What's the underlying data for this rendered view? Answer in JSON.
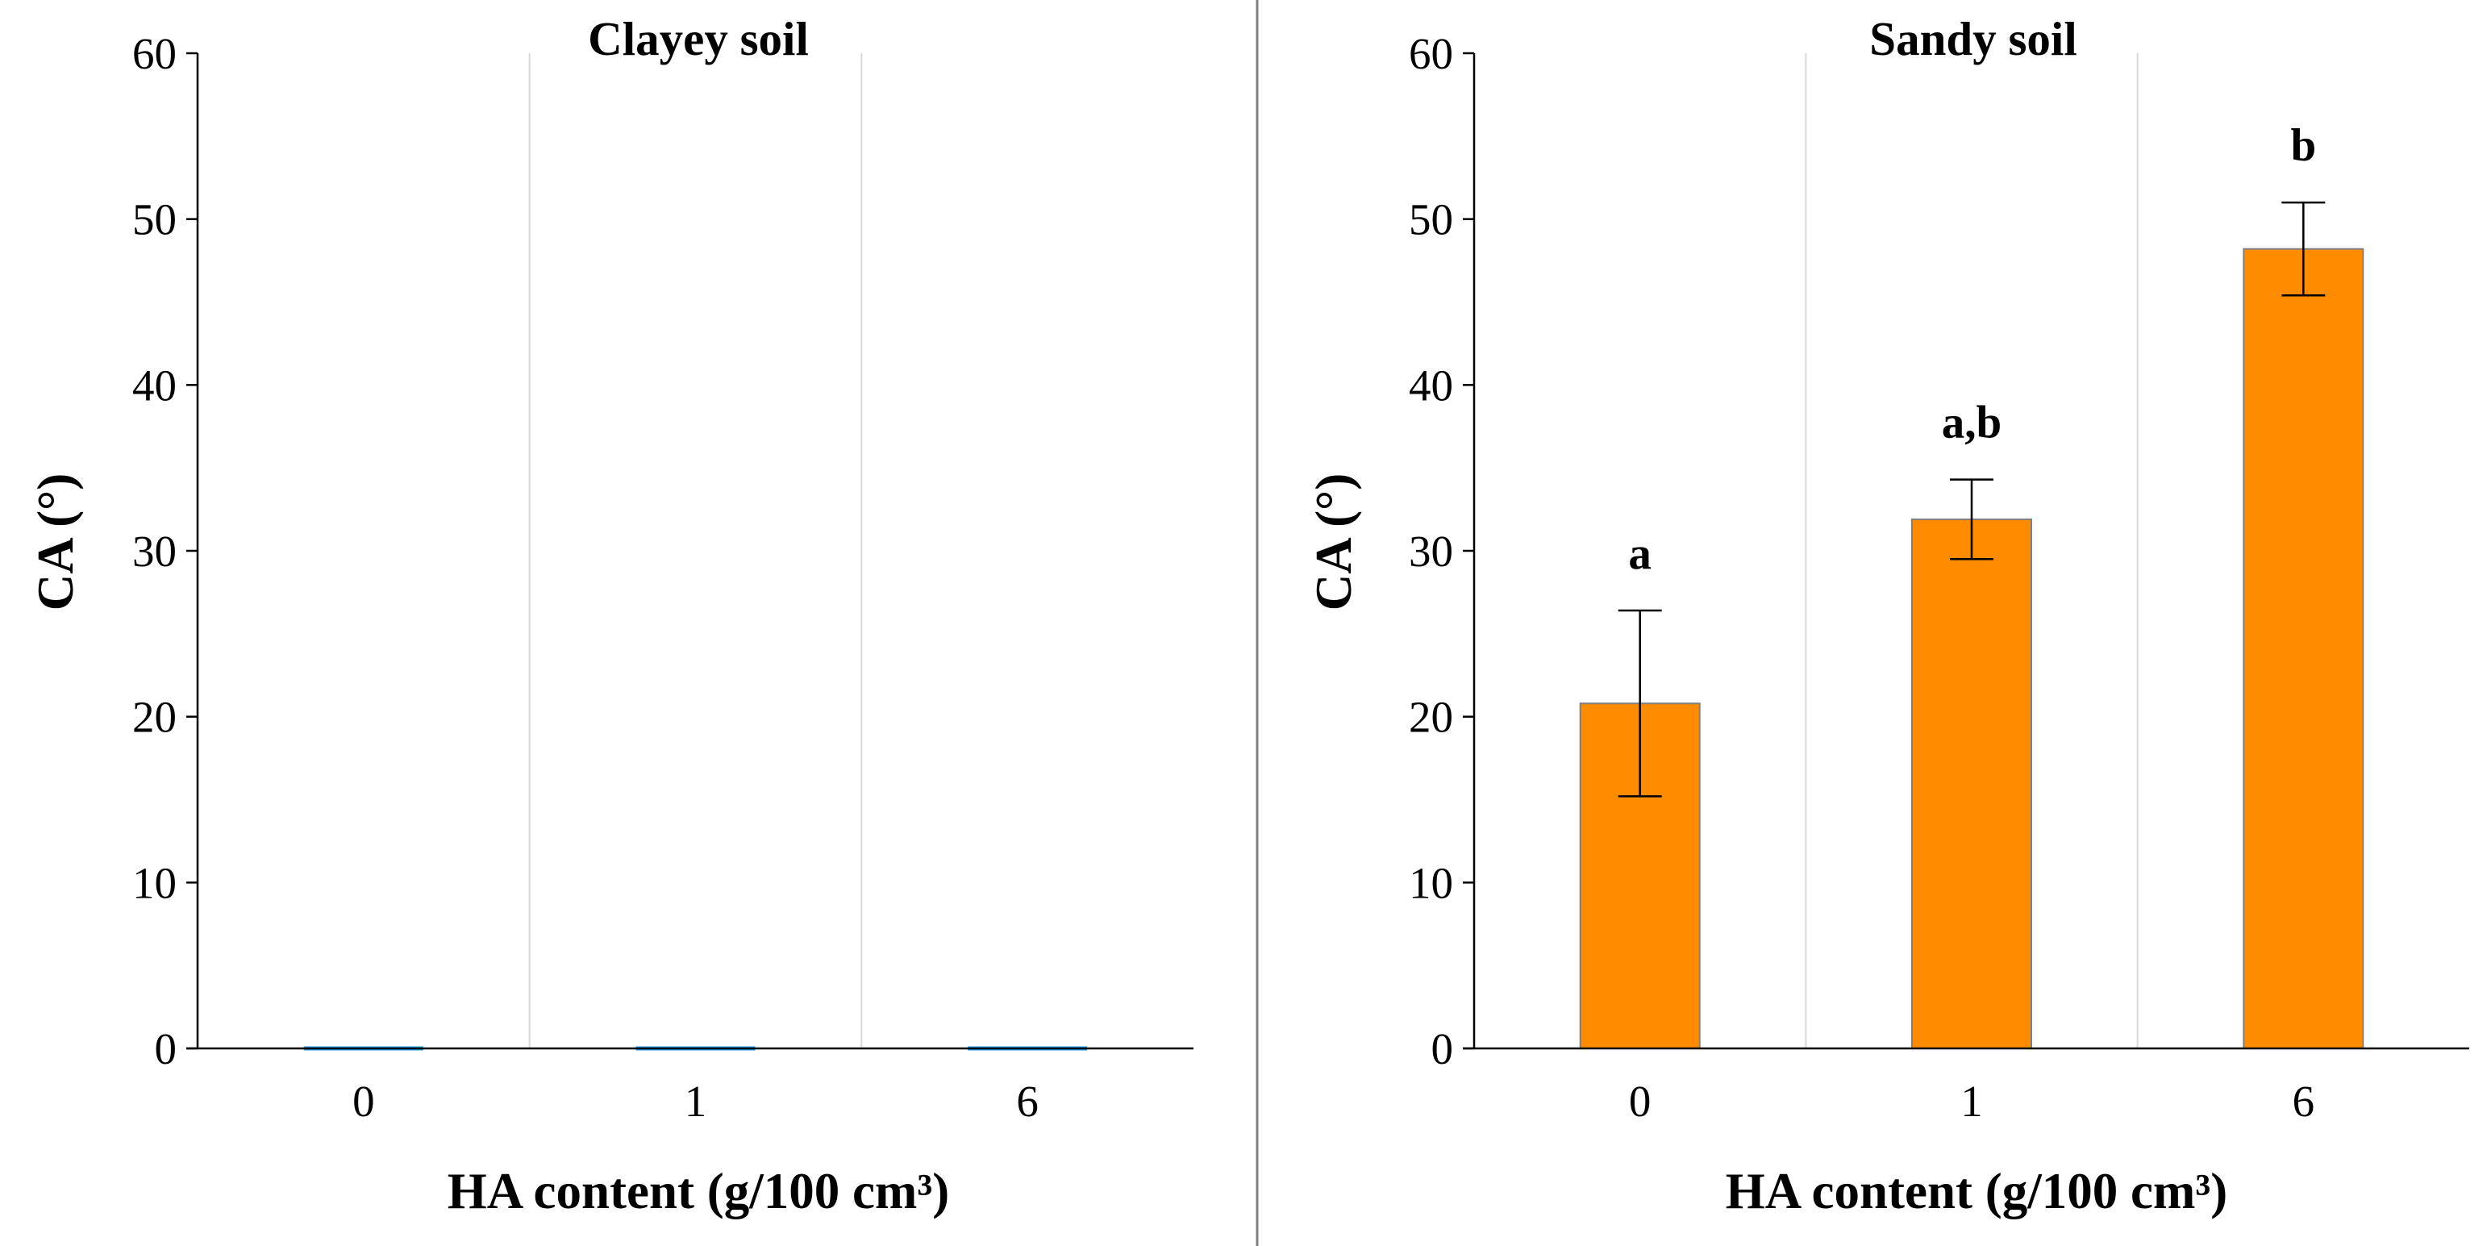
{
  "chart_data": [
    {
      "type": "bar",
      "title": "Clayey soil",
      "xlabel": "HA content (g/100 cm³)",
      "ylabel": "CA (°)",
      "categories": [
        "0",
        "1",
        "6"
      ],
      "values": [
        0,
        0,
        0
      ],
      "errors": [
        0,
        0,
        0
      ],
      "significance_labels": [
        "",
        "",
        ""
      ],
      "ylim": [
        0,
        60
      ],
      "yticks": [
        0,
        10,
        20,
        30,
        40,
        50,
        60
      ],
      "bar_color": "#1E9BE0",
      "grid": "vertical separators between categories"
    },
    {
      "type": "bar",
      "title": "Sandy soil",
      "xlabel": "HA content (g/100 cm³)",
      "ylabel": "CA (°)",
      "categories": [
        "0",
        "1",
        "6"
      ],
      "values": [
        20.8,
        31.9,
        48.2
      ],
      "errors": [
        5.6,
        2.4,
        2.8
      ],
      "significance_labels": [
        "a",
        "a,b",
        "b"
      ],
      "ylim": [
        0,
        60
      ],
      "yticks": [
        0,
        10,
        20,
        30,
        40,
        50,
        60
      ],
      "bar_color": "#FF8C00",
      "grid": "vertical separators between categories"
    }
  ],
  "colors": {
    "axis": "#000000",
    "gridline": "#D9D9D9",
    "divider": "#808080",
    "bar_edge": "#7F7F7F",
    "error_bar": "#000000"
  }
}
